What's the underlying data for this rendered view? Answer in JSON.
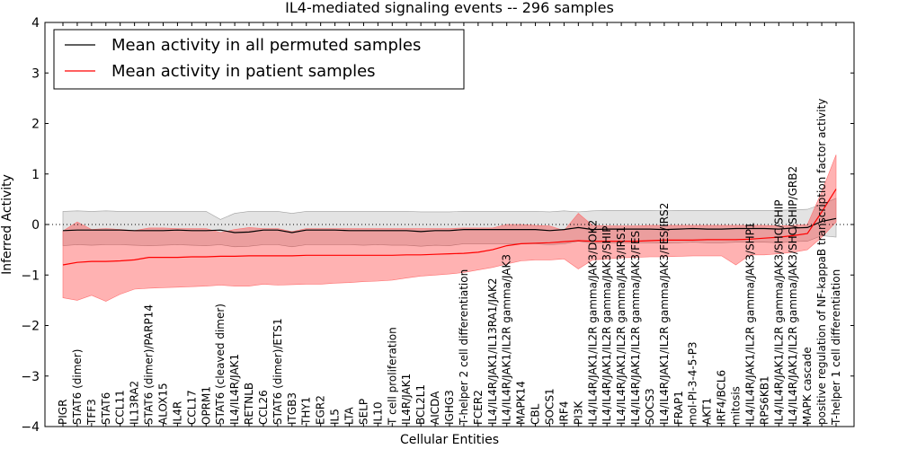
{
  "chart_data": {
    "type": "line",
    "title": "IL4-mediated signaling events -- 296 samples",
    "xlabel": "Cellular Entities",
    "ylabel": "Inferred Activity",
    "ylim": [
      -4,
      4
    ],
    "yticks": [
      -4,
      -3,
      -2,
      -1,
      0,
      1,
      2,
      3,
      4
    ],
    "legend_position": "top-left",
    "reference_line": 0,
    "categories": [
      "PIGR",
      "STAT6 (dimer)",
      "TFF3",
      "STAT6",
      "CCL11",
      "IL13RA2",
      "STAT6 (dimer)/PARP14",
      "ALOX15",
      "IL4R",
      "CCL17",
      "OPRM1",
      "STAT6 (cleaved dimer)",
      "IL4/IL4R/JAK1",
      "RETNLB",
      "CCL26",
      "STAT6 (dimer)/ETS1",
      "ITGB3",
      "THY1",
      "EGR2",
      "IL5",
      "LTA",
      "SELP",
      "IL10",
      "T cell proliferation",
      "IL4R/JAK1",
      "BCL2L1",
      "AICDA",
      "IGHG3",
      "T-helper 2 cell differentiation",
      "FCER2",
      "IL4/IL4R/JAK1/IL13RA1/JAK2",
      "IL4/IL4R/JAK1/IL2R gamma/JAK3",
      "MAPK14",
      "CBL",
      "SOCS1",
      "IRF4",
      "PI3K",
      "IL4/IL4R/JAK1/IL2R gamma/JAK3/DOK2",
      "IL4/IL4R/JAK1/IL2R gamma/JAK3/SHIP",
      "IL4/IL4R/JAK1/IL2R gamma/JAK3/IRS1",
      "IL4/IL4R/JAK1/IL2R gamma/JAK3/FES",
      "SOCS3",
      "IL4/IL4R/JAK1/IL2R gamma/JAK3/FES/IRS2",
      "FRAP1",
      "mol-PI-3-4-5-P3",
      "AKT1",
      "IRF4/BCL6",
      "mitosis",
      "IL4/IL4R/JAK1/IL2R gamma/JAK3/SHP1",
      "RPS6KB1",
      "IL4/IL4R/JAK1/IL2R gamma/JAK3/SHC/SHIP",
      "IL4/IL4R/JAK1/IL2R gamma/JAK3/SHC/SHIP/GRB2",
      "MAPK cascade",
      "positive regulation of NF-kappaB transcription factor activity",
      "T-helper 1 cell differentiation"
    ],
    "series": [
      {
        "name": "Mean activity in all permuted samples",
        "color": "#000000",
        "values": [
          -0.12,
          -0.11,
          -0.11,
          -0.11,
          -0.11,
          -0.12,
          -0.12,
          -0.12,
          -0.11,
          -0.12,
          -0.12,
          -0.11,
          -0.16,
          -0.15,
          -0.11,
          -0.11,
          -0.16,
          -0.11,
          -0.11,
          -0.11,
          -0.12,
          -0.12,
          -0.12,
          -0.12,
          -0.12,
          -0.14,
          -0.12,
          -0.12,
          -0.1,
          -0.1,
          -0.1,
          -0.1,
          -0.1,
          -0.1,
          -0.12,
          -0.1,
          -0.06,
          -0.1,
          -0.09,
          -0.09,
          -0.09,
          -0.09,
          -0.1,
          -0.09,
          -0.08,
          -0.09,
          -0.09,
          -0.08,
          -0.08,
          -0.08,
          -0.09,
          -0.07,
          -0.06,
          0.06,
          0.12
        ],
        "lower": [
          -0.42,
          -0.4,
          -0.41,
          -0.4,
          -0.4,
          -0.41,
          -0.42,
          -0.41,
          -0.4,
          -0.41,
          -0.42,
          -0.4,
          -0.44,
          -0.43,
          -0.4,
          -0.4,
          -0.44,
          -0.4,
          -0.4,
          -0.4,
          -0.4,
          -0.41,
          -0.4,
          -0.41,
          -0.41,
          -0.43,
          -0.41,
          -0.42,
          -0.38,
          -0.38,
          -0.38,
          -0.38,
          -0.38,
          -0.38,
          -0.4,
          -0.38,
          -0.33,
          -0.37,
          -0.36,
          -0.36,
          -0.36,
          -0.36,
          -0.37,
          -0.36,
          -0.35,
          -0.36,
          -0.36,
          -0.35,
          -0.35,
          -0.35,
          -0.36,
          -0.34,
          -0.33,
          -0.22,
          -0.25
        ],
        "upper": [
          0.26,
          0.27,
          0.26,
          0.27,
          0.26,
          0.26,
          0.26,
          0.26,
          0.26,
          0.26,
          0.26,
          0.1,
          0.22,
          0.26,
          0.26,
          0.26,
          0.22,
          0.26,
          0.26,
          0.26,
          0.26,
          0.26,
          0.26,
          0.26,
          0.26,
          0.25,
          0.25,
          0.25,
          0.26,
          0.26,
          0.26,
          0.26,
          0.26,
          0.26,
          0.25,
          0.27,
          0.25,
          0.27,
          0.28,
          0.28,
          0.28,
          0.28,
          0.27,
          0.28,
          0.28,
          0.28,
          0.28,
          0.28,
          0.28,
          0.28,
          0.28,
          0.29,
          0.3,
          0.4,
          0.52
        ]
      },
      {
        "name": "Mean activity in patient samples",
        "color": "#ff0000",
        "values": [
          -0.8,
          -0.75,
          -0.73,
          -0.73,
          -0.72,
          -0.7,
          -0.65,
          -0.65,
          -0.65,
          -0.64,
          -0.64,
          -0.63,
          -0.63,
          -0.62,
          -0.62,
          -0.62,
          -0.62,
          -0.61,
          -0.61,
          -0.61,
          -0.61,
          -0.61,
          -0.61,
          -0.61,
          -0.6,
          -0.6,
          -0.59,
          -0.58,
          -0.57,
          -0.55,
          -0.5,
          -0.42,
          -0.38,
          -0.37,
          -0.36,
          -0.34,
          -0.32,
          -0.33,
          -0.33,
          -0.33,
          -0.33,
          -0.32,
          -0.31,
          -0.31,
          -0.31,
          -0.3,
          -0.3,
          -0.3,
          -0.29,
          -0.27,
          -0.25,
          -0.22,
          -0.18,
          0.25,
          0.7
        ],
        "lower": [
          -1.45,
          -1.5,
          -1.4,
          -1.52,
          -1.38,
          -1.28,
          -1.26,
          -1.25,
          -1.24,
          -1.23,
          -1.22,
          -1.2,
          -1.22,
          -1.22,
          -1.18,
          -1.2,
          -1.19,
          -1.18,
          -1.18,
          -1.16,
          -1.15,
          -1.13,
          -1.12,
          -1.1,
          -1.06,
          -1.02,
          -1.0,
          -0.98,
          -0.95,
          -0.9,
          -0.85,
          -0.78,
          -0.72,
          -0.7,
          -0.7,
          -0.68,
          -0.88,
          -0.7,
          -0.68,
          -0.66,
          -0.65,
          -0.64,
          -0.64,
          -0.63,
          -0.62,
          -0.62,
          -0.62,
          -0.8,
          -0.6,
          -0.6,
          -0.58,
          -0.55,
          -0.5,
          -0.25,
          0.05
        ],
        "upper": [
          -0.13,
          0.05,
          -0.1,
          -0.08,
          -0.1,
          -0.12,
          -0.07,
          -0.07,
          -0.08,
          -0.08,
          -0.08,
          -0.16,
          -0.1,
          -0.06,
          -0.08,
          -0.08,
          -0.14,
          -0.08,
          -0.08,
          -0.08,
          -0.08,
          -0.08,
          -0.08,
          -0.08,
          -0.08,
          -0.08,
          -0.08,
          -0.08,
          -0.07,
          -0.07,
          -0.07,
          0.0,
          0.0,
          -0.02,
          -0.03,
          -0.12,
          0.22,
          -0.02,
          -0.03,
          -0.03,
          -0.03,
          -0.02,
          -0.02,
          -0.02,
          -0.02,
          -0.02,
          -0.02,
          -0.02,
          -0.02,
          -0.02,
          -0.03,
          -0.02,
          0.0,
          0.65,
          1.38
        ]
      }
    ]
  }
}
